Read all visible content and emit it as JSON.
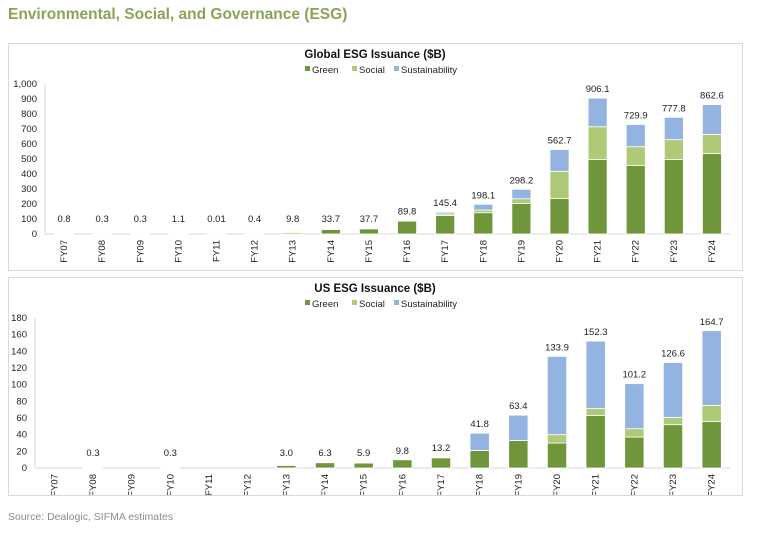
{
  "page": {
    "title": "Environmental, Social, and Governance (ESG)",
    "source": "Source: Dealogic, SIFMA estimates"
  },
  "colors": {
    "Green": "#70963c",
    "Social": "#aec978",
    "Sustainability": "#93b3e0"
  },
  "chart_data": [
    {
      "type": "bar",
      "stacked": true,
      "title": "Global ESG Issuance ($B)",
      "categories": [
        "FY07",
        "FY08",
        "FY09",
        "FY10",
        "FY11",
        "FY12",
        "FY13",
        "FY14",
        "FY15",
        "FY16",
        "FY17",
        "FY18",
        "FY19",
        "FY20",
        "FY21",
        "FY22",
        "FY23",
        "FY24"
      ],
      "series": [
        {
          "name": "Green",
          "values": [
            0.0,
            0.0,
            0.0,
            0.0,
            0.0,
            0.0,
            0.0,
            33.0,
            37.0,
            86.0,
            124.0,
            142.0,
            204.0,
            237.0,
            496.0,
            456.0,
            496.0,
            536.0
          ]
        },
        {
          "name": "Social",
          "values": [
            0.8,
            0.3,
            0.3,
            1.1,
            0.01,
            0.4,
            9.8,
            0.7,
            0.7,
            3.8,
            10.0,
            18.0,
            31.0,
            181.0,
            219.0,
            126.0,
            133.0,
            128.0
          ]
        },
        {
          "name": "Sustainability",
          "values": [
            0.0,
            0.0,
            0.0,
            0.0,
            0.0,
            0.0,
            0.0,
            0.0,
            0.0,
            0.0,
            11.4,
            38.1,
            63.2,
            144.7,
            191.1,
            147.9,
            148.8,
            198.6
          ]
        }
      ],
      "totals": [
        "0.8",
        "0.3",
        "0.3",
        "1.1",
        "0.01",
        "0.4",
        "9.8",
        "33.7",
        "37.7",
        "89.8",
        "145.4",
        "198.1",
        "298.2",
        "562.7",
        "906.1",
        "729.9",
        "777.8",
        "862.6"
      ],
      "yticks": [
        "0",
        "100",
        "200",
        "300",
        "400",
        "500",
        "600",
        "700",
        "800",
        "900",
        "1,000"
      ],
      "ylim": [
        0,
        1000
      ],
      "xlabel": "",
      "ylabel": "",
      "legend": "top-center",
      "grid": false
    },
    {
      "type": "bar",
      "stacked": true,
      "title": "US ESG Issuance ($B)",
      "categories": [
        "FY07",
        "FY08",
        "FY09",
        "FY10",
        "FY11",
        "FY12",
        "FY13",
        "FY14",
        "FY15",
        "FY16",
        "FY17",
        "FY18",
        "FY19",
        "FY20",
        "FY21",
        "FY22",
        "FY23",
        "FY24"
      ],
      "series": [
        {
          "name": "Green",
          "values": [
            0.0,
            0.3,
            0.0,
            0.3,
            0.0,
            0.0,
            3.0,
            6.3,
            5.9,
            9.8,
            12.2,
            21.0,
            33.0,
            30.0,
            62.9,
            37.2,
            52.0,
            56.0
          ]
        },
        {
          "name": "Social",
          "values": [
            0.0,
            0.0,
            0.0,
            0.0,
            0.0,
            0.0,
            0.0,
            0.0,
            0.0,
            0.0,
            1.0,
            0.0,
            0.0,
            10.0,
            8.4,
            10.0,
            8.8,
            19.2
          ]
        },
        {
          "name": "Sustainability",
          "values": [
            0.0,
            0.0,
            0.0,
            0.0,
            0.0,
            0.0,
            0.0,
            0.0,
            0.0,
            0.0,
            0.0,
            20.8,
            30.4,
            93.9,
            81.0,
            54.0,
            65.8,
            89.5
          ]
        }
      ],
      "totals": [
        "",
        "0.3",
        "",
        "0.3",
        "",
        "",
        "3.0",
        "6.3",
        "5.9",
        "9.8",
        "13.2",
        "41.8",
        "63.4",
        "133.9",
        "152.3",
        "101.2",
        "126.6",
        "164.7"
      ],
      "yticks": [
        "0",
        "20",
        "40",
        "60",
        "80",
        "100",
        "120",
        "140",
        "160",
        "180"
      ],
      "ylim": [
        0,
        180
      ],
      "xlabel": "",
      "ylabel": "",
      "legend": "top-center",
      "grid": false
    }
  ]
}
